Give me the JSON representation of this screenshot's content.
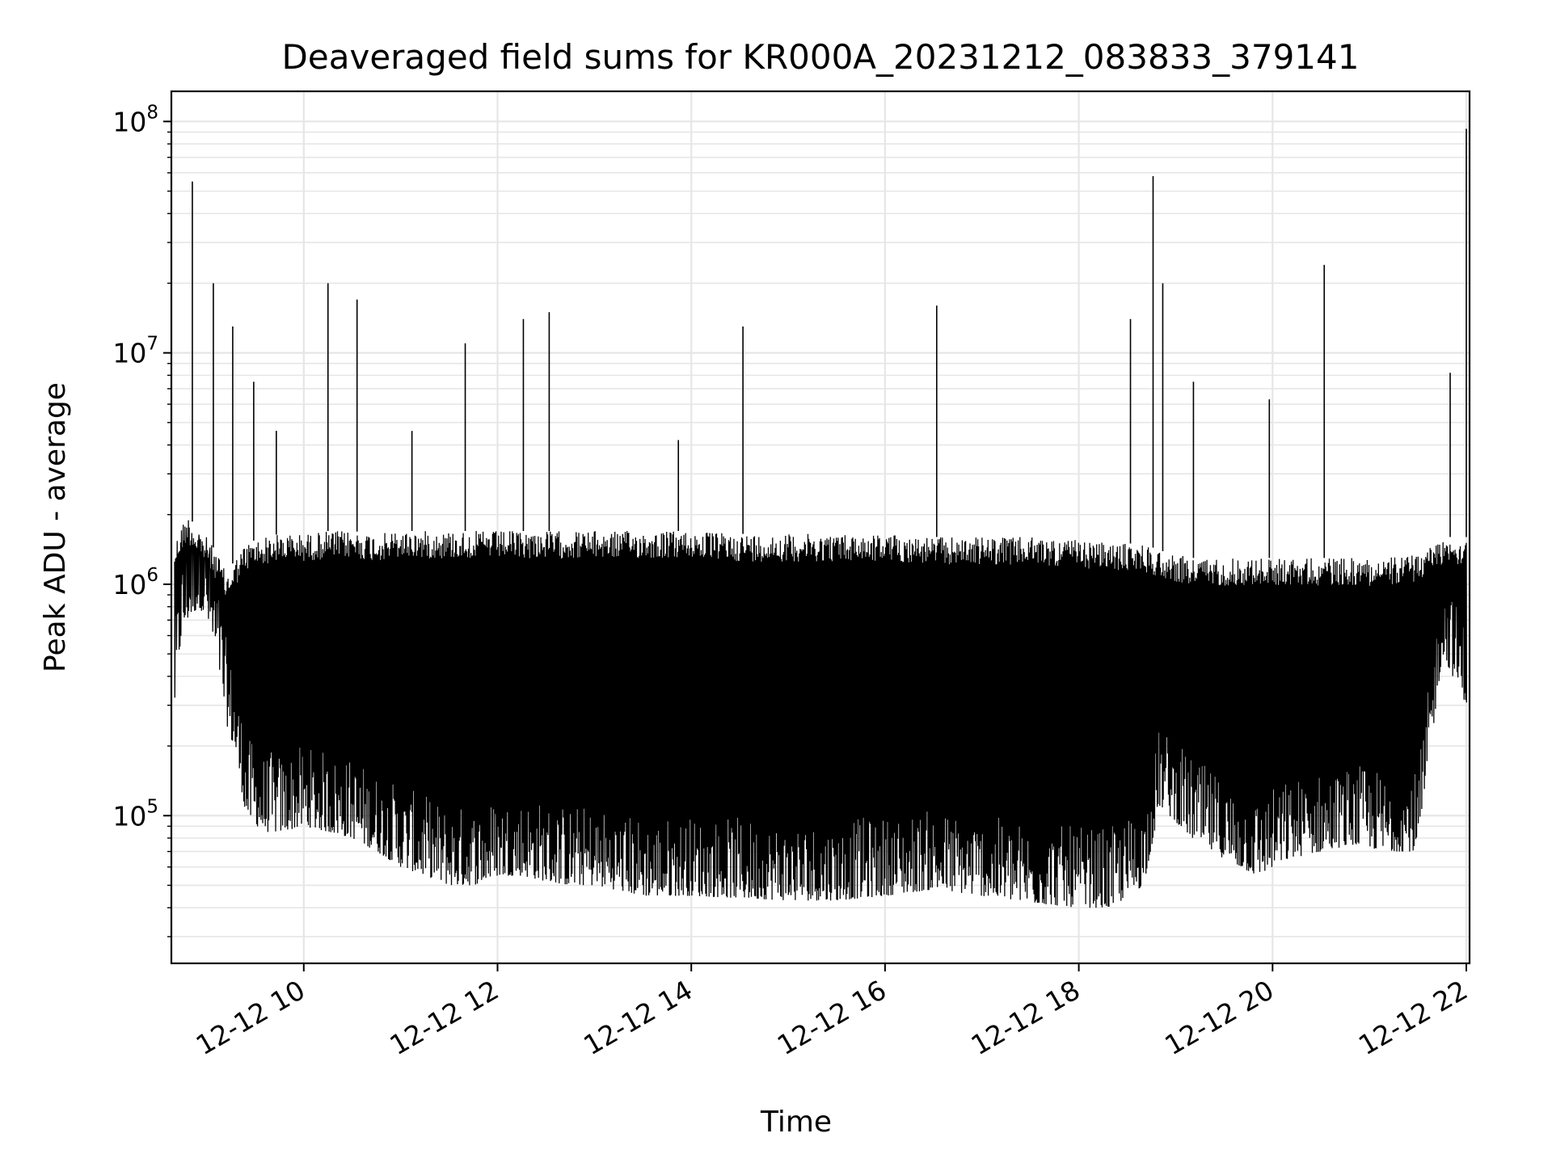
{
  "chart_data": {
    "type": "line",
    "title": "Deaveraged field sums for KR000A_20231212_083833_379141",
    "xlabel": "Time",
    "ylabel": "Peak ADU - average",
    "xlim": [
      "2023-12-12 08:38",
      "2023-12-12 22:02"
    ],
    "ylim": [
      23000,
      135000000
    ],
    "yscale": "log",
    "grid": true,
    "line_color": "#000000",
    "x_ticks": [
      "12-12 10",
      "12-12 12",
      "12-12 14",
      "12-12 16",
      "12-12 18",
      "12-12 20",
      "12-12 22"
    ],
    "y_ticks": [
      {
        "base": "10",
        "exp": "5",
        "value": 100000
      },
      {
        "base": "10",
        "exp": "6",
        "value": 1000000
      },
      {
        "base": "10",
        "exp": "7",
        "value": 10000000
      },
      {
        "base": "10",
        "exp": "8",
        "value": 100000000
      }
    ],
    "series": [
      {
        "x": [
          "2023-12-12 08:40",
          "2023-12-12 08:44",
          "2023-12-12 08:48",
          "2023-12-12 08:55",
          "2023-12-12 09:00",
          "2023-12-12 09:08",
          "2023-12-12 09:12",
          "2023-12-12 09:18",
          "2023-12-12 09:24",
          "2023-12-12 09:35",
          "2023-12-12 09:45",
          "2023-12-12 10:00",
          "2023-12-12 10:15",
          "2023-12-12 10:30",
          "2023-12-12 10:45",
          "2023-12-12 11:00",
          "2023-12-12 11:15",
          "2023-12-12 11:30",
          "2023-12-12 11:45",
          "2023-12-12 12:00",
          "2023-12-12 12:15",
          "2023-12-12 12:30",
          "2023-12-12 12:45",
          "2023-12-12 13:00",
          "2023-12-12 13:30",
          "2023-12-12 14:00",
          "2023-12-12 14:30",
          "2023-12-12 15:00",
          "2023-12-12 15:30",
          "2023-12-12 16:00",
          "2023-12-12 16:30",
          "2023-12-12 17:00",
          "2023-12-12 17:30",
          "2023-12-12 18:00",
          "2023-12-12 18:20",
          "2023-12-12 18:40",
          "2023-12-12 18:50",
          "2023-12-12 19:10",
          "2023-12-12 19:30",
          "2023-12-12 19:50",
          "2023-12-12 20:10",
          "2023-12-12 20:30",
          "2023-12-12 20:50",
          "2023-12-12 21:10",
          "2023-12-12 21:30",
          "2023-12-12 21:45",
          "2023-12-12 22:00"
        ],
        "high": [
          1500000,
          1800000,
          2000000,
          1700000,
          1600000,
          1300000,
          1100000,
          1300000,
          1500000,
          1600000,
          1650000,
          1650000,
          1700000,
          1700000,
          1650000,
          1700000,
          1700000,
          1700000,
          1700000,
          1700000,
          1700000,
          1700000,
          1700000,
          1700000,
          1700000,
          1700000,
          1650000,
          1650000,
          1650000,
          1650000,
          1600000,
          1600000,
          1600000,
          1550000,
          1500000,
          1500000,
          1400000,
          1300000,
          1300000,
          1300000,
          1300000,
          1300000,
          1300000,
          1300000,
          1350000,
          1600000,
          1600000
        ],
        "low": [
          300000,
          600000,
          700000,
          800000,
          700000,
          400000,
          250000,
          180000,
          100000,
          85000,
          85000,
          90000,
          85000,
          80000,
          70000,
          60000,
          55000,
          50000,
          50000,
          55000,
          55000,
          52000,
          50000,
          50000,
          45000,
          45000,
          44000,
          43000,
          43000,
          45000,
          48000,
          45000,
          42000,
          40000,
          40000,
          50000,
          110000,
          80000,
          65000,
          55000,
          65000,
          70000,
          75000,
          70000,
          70000,
          500000,
          300000
        ],
        "spikes": [
          {
            "x": "2023-12-12 08:51",
            "y": 55000000
          },
          {
            "x": "2023-12-12 09:04",
            "y": 20000000
          },
          {
            "x": "2023-12-12 09:16",
            "y": 13000000
          },
          {
            "x": "2023-12-12 09:29",
            "y": 7500000
          },
          {
            "x": "2023-12-12 09:43",
            "y": 4600000
          },
          {
            "x": "2023-12-12 10:15",
            "y": 20000000
          },
          {
            "x": "2023-12-12 10:33",
            "y": 17000000
          },
          {
            "x": "2023-12-12 11:07",
            "y": 4600000
          },
          {
            "x": "2023-12-12 11:40",
            "y": 11000000
          },
          {
            "x": "2023-12-12 12:16",
            "y": 14000000
          },
          {
            "x": "2023-12-12 12:32",
            "y": 15000000
          },
          {
            "x": "2023-12-12 13:52",
            "y": 4200000
          },
          {
            "x": "2023-12-12 14:32",
            "y": 13000000
          },
          {
            "x": "2023-12-12 16:32",
            "y": 16000000
          },
          {
            "x": "2023-12-12 18:32",
            "y": 14000000
          },
          {
            "x": "2023-12-12 18:46",
            "y": 58000000
          },
          {
            "x": "2023-12-12 18:52",
            "y": 20000000
          },
          {
            "x": "2023-12-12 19:11",
            "y": 7500000
          },
          {
            "x": "2023-12-12 19:58",
            "y": 6300000
          },
          {
            "x": "2023-12-12 20:32",
            "y": 24000000
          },
          {
            "x": "2023-12-12 21:50",
            "y": 8200000
          },
          {
            "x": "2023-12-12 22:00",
            "y": 93000000
          }
        ]
      }
    ]
  }
}
